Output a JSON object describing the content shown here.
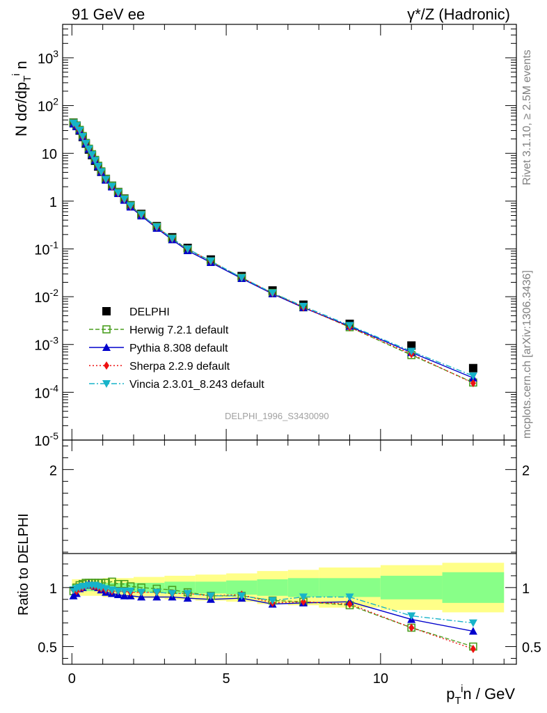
{
  "header": {
    "left_title": "91 GeV ee",
    "right_title": "γ*/Z (Hadronic)"
  },
  "side_labels": {
    "rivet": "Rivet 3.1.10, ≥ 2.5M events",
    "mcplots": "mcplots.cern.ch [arXiv:1306.3436]"
  },
  "watermark": "DELPHI_1996_S3430090",
  "colors": {
    "data": "#000000",
    "herwig": "#4a9e1f",
    "pythia": "#0000cc",
    "sherpa": "#ee1111",
    "vincia": "#17b3c9",
    "band_outer": "#ffff88",
    "band_inner": "#88ff88"
  },
  "chart_data": [
    {
      "type": "scatter",
      "panel": "main",
      "ylabel": "N dσ/dp_T^i n",
      "xlabel": "",
      "yscale": "log",
      "ylim": [
        1e-05,
        5000
      ],
      "xlim": [
        -0.3,
        14.4
      ],
      "ytick_labels": [
        "10^-5",
        "10^-4",
        "10^-3",
        "10^-2",
        "10^-1",
        "1",
        "10",
        "10^2",
        "10^3"
      ],
      "x": [
        0.05,
        0.15,
        0.25,
        0.35,
        0.45,
        0.55,
        0.65,
        0.75,
        0.85,
        0.95,
        1.1,
        1.3,
        1.5,
        1.7,
        1.9,
        2.25,
        2.75,
        3.25,
        3.75,
        4.5,
        5.5,
        6.5,
        7.5,
        9.0,
        11.0,
        13.0
      ],
      "series": [
        {
          "name": "DELPHI",
          "style": "square-filled",
          "values": [
            44,
            38,
            30,
            22,
            16,
            12,
            9.2,
            7.0,
            5.3,
            4.1,
            2.9,
            2.1,
            1.55,
            1.13,
            0.82,
            0.54,
            0.3,
            0.175,
            0.105,
            0.06,
            0.027,
            0.0135,
            0.0068,
            0.0027,
            0.00095,
            0.00032
          ]
        },
        {
          "name": "Herwig 7.2.1 default",
          "style": "square-open",
          "values": [
            44,
            38,
            31,
            23,
            16.5,
            12.5,
            9.6,
            7.3,
            5.5,
            4.2,
            2.95,
            2.1,
            1.55,
            1.12,
            0.81,
            0.52,
            0.29,
            0.165,
            0.098,
            0.055,
            0.025,
            0.012,
            0.006,
            0.0023,
            0.0006,
            0.00016
          ]
        },
        {
          "name": "Pythia 8.308 default",
          "style": "triangle-up",
          "values": [
            41,
            36,
            30,
            22,
            16,
            12.2,
            9.3,
            7.1,
            5.3,
            4.0,
            2.75,
            1.98,
            1.44,
            1.04,
            0.75,
            0.49,
            0.27,
            0.155,
            0.092,
            0.052,
            0.024,
            0.0115,
            0.0059,
            0.0024,
            0.00068,
            0.0002
          ]
        },
        {
          "name": "Sherpa 2.2.9 default",
          "style": "diamond",
          "values": [
            43,
            37,
            30,
            22,
            16.2,
            12.2,
            9.3,
            7.1,
            5.3,
            4.05,
            2.8,
            2.0,
            1.47,
            1.08,
            0.78,
            0.51,
            0.285,
            0.163,
            0.1,
            0.055,
            0.025,
            0.0118,
            0.006,
            0.0023,
            0.00063,
            0.000155
          ]
        },
        {
          "name": "Vincia 2.3.01_8.243 default",
          "style": "triangle-down",
          "values": [
            43,
            38,
            30.5,
            22.5,
            16.2,
            12.3,
            9.4,
            7.1,
            5.35,
            4.1,
            2.85,
            2.05,
            1.5,
            1.1,
            0.8,
            0.52,
            0.29,
            0.165,
            0.1,
            0.056,
            0.025,
            0.012,
            0.0063,
            0.0025,
            0.00072,
            0.00022
          ]
        }
      ]
    },
    {
      "type": "line",
      "panel": "ratio",
      "ylabel": "Ratio to DELPHI",
      "xlabel": "p_T^i n / GeV",
      "ylim": [
        0.35,
        2.25
      ],
      "xlim": [
        -0.3,
        14.4
      ],
      "xtick_labels": [
        "0",
        "5",
        "10"
      ],
      "ytick_labels": [
        "0.5",
        "1",
        "2"
      ],
      "reference": 1,
      "x": [
        0.05,
        0.15,
        0.25,
        0.35,
        0.45,
        0.55,
        0.65,
        0.75,
        0.85,
        0.95,
        1.1,
        1.3,
        1.5,
        1.7,
        1.9,
        2.25,
        2.75,
        3.25,
        3.75,
        4.5,
        5.5,
        6.5,
        7.5,
        9.0,
        11.0,
        13.0
      ],
      "band_bins": [
        {
          "from": 0.0,
          "to": 1.0,
          "inner": 0.03,
          "outer": 0.07
        },
        {
          "from": 1.0,
          "to": 2.0,
          "inner": 0.04,
          "outer": 0.08
        },
        {
          "from": 2.0,
          "to": 3.0,
          "inner": 0.04,
          "outer": 0.09
        },
        {
          "from": 3.0,
          "to": 4.0,
          "inner": 0.05,
          "outer": 0.1
        },
        {
          "from": 4.0,
          "to": 5.0,
          "inner": 0.05,
          "outer": 0.11
        },
        {
          "from": 5.0,
          "to": 6.0,
          "inner": 0.06,
          "outer": 0.12
        },
        {
          "from": 6.0,
          "to": 7.0,
          "inner": 0.07,
          "outer": 0.14
        },
        {
          "from": 7.0,
          "to": 8.0,
          "inner": 0.08,
          "outer": 0.15
        },
        {
          "from": 8.0,
          "to": 10.0,
          "inner": 0.08,
          "outer": 0.17
        },
        {
          "from": 10.0,
          "to": 12.0,
          "inner": 0.1,
          "outer": 0.19
        },
        {
          "from": 12.0,
          "to": 14.0,
          "inner": 0.13,
          "outer": 0.21
        }
      ],
      "series": [
        {
          "name": "Herwig 7.2.1 default",
          "values": [
            0.97,
            1.0,
            1.02,
            1.03,
            1.04,
            1.04,
            1.04,
            1.04,
            1.04,
            1.04,
            1.04,
            1.05,
            1.03,
            1.03,
            1.01,
            1.0,
            0.99,
            0.98,
            0.96,
            0.93,
            0.93,
            0.89,
            0.88,
            0.85,
            0.66,
            0.5
          ]
        },
        {
          "name": "Pythia 8.308 default",
          "values": [
            0.93,
            0.95,
            0.99,
            1.0,
            1.02,
            1.03,
            1.02,
            1.01,
            1.0,
            0.98,
            0.96,
            0.95,
            0.94,
            0.93,
            0.93,
            0.92,
            0.92,
            0.92,
            0.91,
            0.9,
            0.91,
            0.86,
            0.87,
            0.88,
            0.73,
            0.63
          ]
        },
        {
          "name": "Sherpa 2.2.9 default",
          "values": [
            0.98,
            0.97,
            0.99,
            1.0,
            1.01,
            1.02,
            1.01,
            1.01,
            1.0,
            0.99,
            0.98,
            0.97,
            0.97,
            0.97,
            0.96,
            0.96,
            0.96,
            0.95,
            0.95,
            0.93,
            0.94,
            0.87,
            0.88,
            0.86,
            0.66,
            0.48
          ]
        },
        {
          "name": "Vincia 2.3.01_8.243 default",
          "values": [
            0.98,
            0.99,
            1.0,
            1.01,
            1.01,
            1.02,
            1.02,
            1.02,
            1.01,
            1.0,
            0.99,
            0.98,
            0.97,
            0.97,
            0.97,
            0.96,
            0.96,
            0.95,
            0.95,
            0.93,
            0.93,
            0.89,
            0.92,
            0.92,
            0.76,
            0.7
          ]
        }
      ]
    }
  ]
}
